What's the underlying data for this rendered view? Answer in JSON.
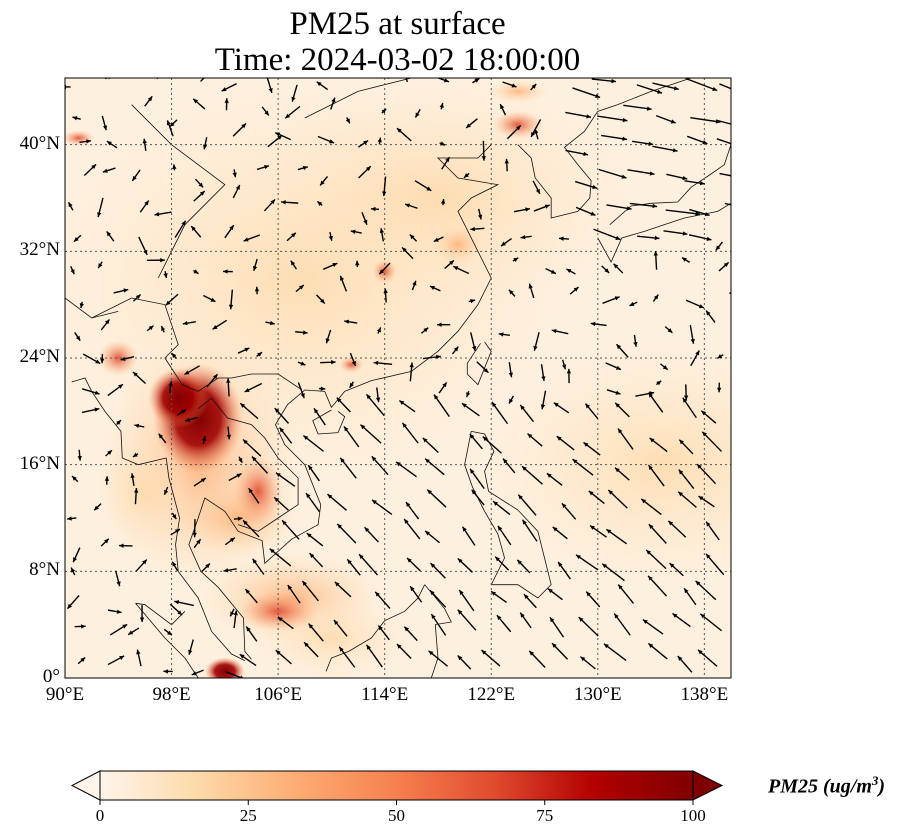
{
  "title": {
    "line1": "PM25 at surface",
    "line2": "Time: 2024-03-02 18:00:00"
  },
  "map": {
    "extent_lon": [
      90,
      140
    ],
    "extent_lat": [
      0,
      45
    ],
    "x_ticks": [
      "90°E",
      "98°E",
      "106°E",
      "114°E",
      "122°E",
      "130°E",
      "138°E"
    ],
    "x_tick_values": [
      90,
      98,
      106,
      114,
      122,
      130,
      138
    ],
    "y_ticks": [
      "0°",
      "8°N",
      "16°N",
      "24°N",
      "32°N",
      "40°N"
    ],
    "y_tick_values": [
      0,
      8,
      16,
      24,
      32,
      40
    ]
  },
  "colorbar": {
    "label": "PM25 (ug/m",
    "label_sup": "3",
    "label_end": ")",
    "ticks": [
      "0",
      "25",
      "50",
      "75",
      "100"
    ],
    "range": [
      0,
      100
    ],
    "colors": [
      "#fff5eb",
      "#fdd9a8",
      "#fdac73",
      "#f6804f",
      "#e04a2f",
      "#b30000",
      "#7f0000"
    ]
  }
}
